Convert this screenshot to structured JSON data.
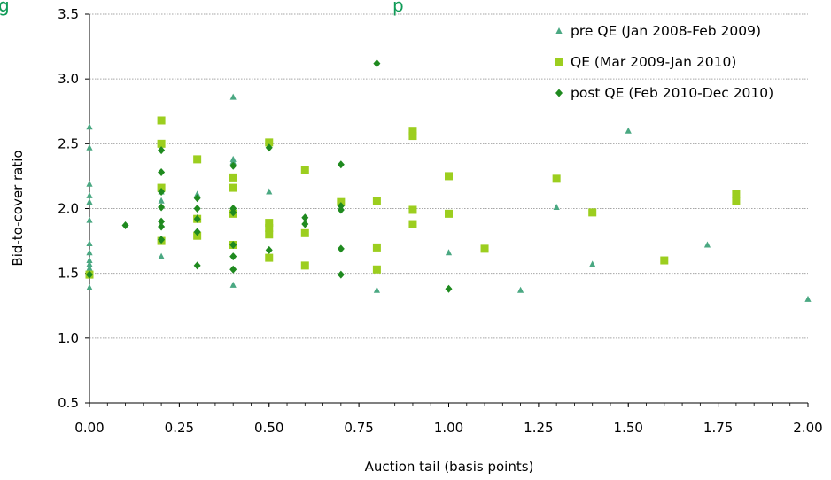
{
  "title_fragment": "g",
  "title_fragment_tail": "p",
  "colors": {
    "pre": "#4aa882",
    "qe": "#9cce1f",
    "post": "#1f8a1f",
    "title": "#0f9b57",
    "grid": "#a6a6a6"
  },
  "chart_data": {
    "type": "scatter",
    "xlabel": "Auction tail (basis points)",
    "ylabel": "Bid-to-cover ratio",
    "xlim": [
      0,
      2
    ],
    "ylim": [
      0.5,
      3.5
    ],
    "xticks": [
      "0.00",
      "0.25",
      "0.50",
      "0.75",
      "1.00",
      "1.25",
      "1.50",
      "1.75",
      "2.00"
    ],
    "yticks": [
      "0.5",
      "1.0",
      "1.5",
      "2.0",
      "2.5",
      "3.0",
      "3.5"
    ],
    "grid": "horizontal",
    "legend_position": "top-right",
    "series": [
      {
        "name": "pre QE (Jan 2008-Feb 2009)",
        "marker": "triangle",
        "color": "#4aa882",
        "points": [
          [
            0.0,
            2.63
          ],
          [
            0.0,
            2.47
          ],
          [
            0.0,
            2.19
          ],
          [
            0.0,
            2.1
          ],
          [
            0.0,
            2.05
          ],
          [
            0.0,
            1.91
          ],
          [
            0.0,
            1.73
          ],
          [
            0.0,
            1.66
          ],
          [
            0.0,
            1.6
          ],
          [
            0.0,
            1.57
          ],
          [
            0.0,
            1.54
          ],
          [
            0.0,
            1.51
          ],
          [
            0.0,
            1.39
          ],
          [
            0.2,
            2.13
          ],
          [
            0.2,
            2.06
          ],
          [
            0.2,
            1.63
          ],
          [
            0.3,
            2.11
          ],
          [
            0.3,
            1.93
          ],
          [
            0.4,
            2.86
          ],
          [
            0.4,
            2.38
          ],
          [
            0.4,
            2.36
          ],
          [
            0.4,
            1.41
          ],
          [
            0.5,
            2.13
          ],
          [
            0.8,
            1.37
          ],
          [
            1.0,
            1.66
          ],
          [
            1.2,
            1.37
          ],
          [
            1.3,
            2.01
          ],
          [
            1.4,
            1.57
          ],
          [
            1.5,
            2.6
          ],
          [
            1.72,
            1.72
          ],
          [
            2.0,
            1.3
          ]
        ]
      },
      {
        "name": "QE (Mar 2009-Jan 2010)",
        "marker": "square",
        "color": "#9cce1f",
        "points": [
          [
            0.0,
            1.49
          ],
          [
            0.2,
            2.68
          ],
          [
            0.2,
            2.5
          ],
          [
            0.2,
            2.16
          ],
          [
            0.2,
            1.75
          ],
          [
            0.3,
            2.38
          ],
          [
            0.3,
            1.92
          ],
          [
            0.3,
            1.79
          ],
          [
            0.4,
            2.24
          ],
          [
            0.4,
            2.16
          ],
          [
            0.4,
            1.96
          ],
          [
            0.4,
            1.72
          ],
          [
            0.5,
            2.51
          ],
          [
            0.5,
            1.89
          ],
          [
            0.5,
            1.85
          ],
          [
            0.5,
            1.8
          ],
          [
            0.5,
            1.62
          ],
          [
            0.6,
            2.3
          ],
          [
            0.6,
            1.81
          ],
          [
            0.6,
            1.56
          ],
          [
            0.7,
            2.05
          ],
          [
            0.8,
            2.06
          ],
          [
            0.8,
            1.7
          ],
          [
            0.8,
            1.53
          ],
          [
            0.9,
            2.6
          ],
          [
            0.9,
            2.56
          ],
          [
            0.9,
            1.99
          ],
          [
            0.9,
            1.88
          ],
          [
            1.0,
            2.25
          ],
          [
            1.0,
            1.96
          ],
          [
            1.1,
            1.69
          ],
          [
            1.3,
            2.23
          ],
          [
            1.4,
            1.97
          ],
          [
            1.6,
            1.6
          ],
          [
            1.8,
            2.11
          ],
          [
            1.8,
            2.06
          ]
        ]
      },
      {
        "name": "post QE (Feb 2010-Dec 2010)",
        "marker": "diamond",
        "color": "#1f8a1f",
        "points": [
          [
            0.0,
            1.49
          ],
          [
            0.1,
            1.87
          ],
          [
            0.2,
            2.45
          ],
          [
            0.2,
            2.28
          ],
          [
            0.2,
            2.13
          ],
          [
            0.2,
            2.01
          ],
          [
            0.2,
            1.9
          ],
          [
            0.2,
            1.86
          ],
          [
            0.2,
            1.76
          ],
          [
            0.3,
            2.08
          ],
          [
            0.3,
            2.0
          ],
          [
            0.3,
            1.92
          ],
          [
            0.3,
            1.82
          ],
          [
            0.3,
            1.56
          ],
          [
            0.4,
            2.33
          ],
          [
            0.4,
            2.0
          ],
          [
            0.4,
            1.97
          ],
          [
            0.4,
            1.72
          ],
          [
            0.4,
            1.63
          ],
          [
            0.4,
            1.53
          ],
          [
            0.5,
            2.47
          ],
          [
            0.5,
            1.68
          ],
          [
            0.6,
            1.93
          ],
          [
            0.6,
            1.88
          ],
          [
            0.7,
            2.34
          ],
          [
            0.7,
            2.02
          ],
          [
            0.7,
            1.99
          ],
          [
            0.7,
            1.69
          ],
          [
            0.7,
            1.49
          ],
          [
            0.8,
            3.12
          ],
          [
            1.0,
            1.38
          ]
        ]
      }
    ]
  }
}
